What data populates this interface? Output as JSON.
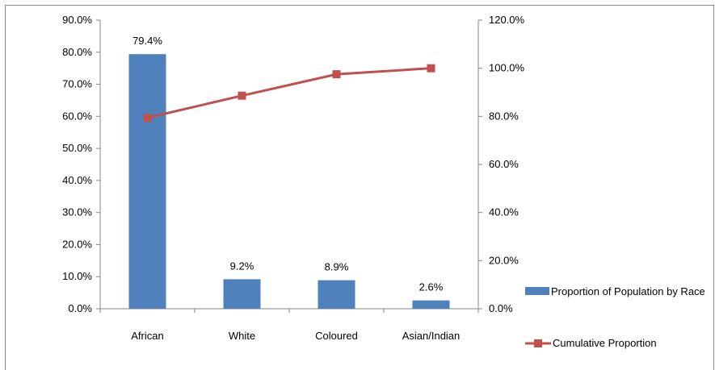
{
  "header": {
    "partial_title": ""
  },
  "chart_data": {
    "type": "bar",
    "categories": [
      "African",
      "White",
      "Coloured",
      "Asian/Indian"
    ],
    "series": [
      {
        "name": "Proportion of Population by Race",
        "type": "bar",
        "axis": "left",
        "color": "#4F81BD",
        "values": [
          79.4,
          9.2,
          8.9,
          2.6
        ],
        "data_labels": [
          "79.4%",
          "9.2%",
          "8.9%",
          "2.6%"
        ]
      },
      {
        "name": "Cumulative Proportion",
        "type": "line",
        "axis": "right",
        "color": "#C0504D",
        "marker": "square",
        "values": [
          79.4,
          88.6,
          97.5,
          100.0
        ]
      }
    ],
    "y_left": {
      "ylim": [
        0,
        90
      ],
      "ticks": [
        0,
        10,
        20,
        30,
        40,
        50,
        60,
        70,
        80,
        90
      ],
      "tick_labels": [
        "0.0%",
        "10.0%",
        "20.0%",
        "30.0%",
        "40.0%",
        "50.0%",
        "60.0%",
        "70.0%",
        "80.0%",
        "90.0%"
      ]
    },
    "y_right": {
      "ylim": [
        0,
        120
      ],
      "ticks": [
        0,
        20,
        40,
        60,
        80,
        100,
        120
      ],
      "tick_labels": [
        "0.0%",
        "20.0%",
        "40.0%",
        "60.0%",
        "80.0%",
        "100.0%",
        "120.0%"
      ]
    },
    "grid": false,
    "legend_position": "right"
  }
}
